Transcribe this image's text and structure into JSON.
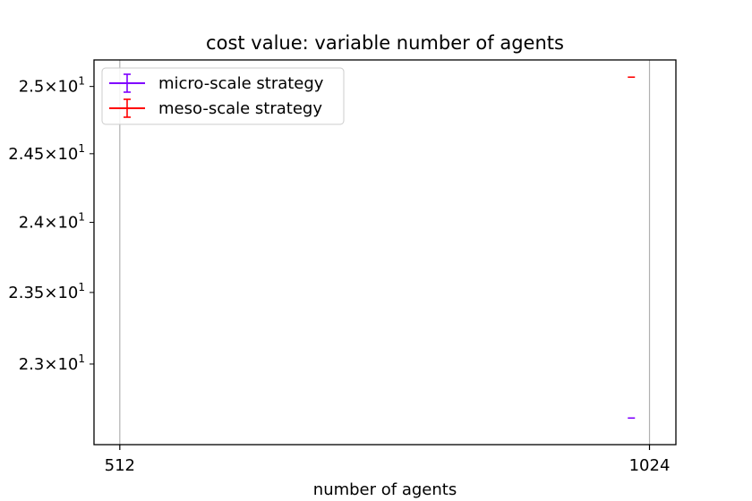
{
  "chart_data": {
    "type": "scatter",
    "title": "cost value: variable number of agents",
    "xlabel": "number of agents",
    "ylabel": "",
    "x_scale": "log2",
    "y_scale": "log",
    "xlim": [
      495,
      1060
    ],
    "ylim": [
      22.45,
      25.2
    ],
    "grid": "x-major",
    "legend_position": "top-left",
    "x_ticks": [
      {
        "value": 512,
        "label": "512"
      },
      {
        "value": 1024,
        "label": "1024"
      }
    ],
    "y_ticks": [
      {
        "value": 23.0,
        "mantissa": "2.3",
        "base": "10",
        "exp": "1"
      },
      {
        "value": 23.5,
        "mantissa": "2.35",
        "base": "10",
        "exp": "1"
      },
      {
        "value": 24.0,
        "mantissa": "2.4",
        "base": "10",
        "exp": "1"
      },
      {
        "value": 24.5,
        "mantissa": "2.45",
        "base": "10",
        "exp": "1"
      },
      {
        "value": 25.0,
        "mantissa": "2.5",
        "base": "10",
        "exp": "1"
      }
    ],
    "series": [
      {
        "name": "micro-scale strategy",
        "color": "#7f00ff",
        "points": [
          {
            "x": 1000,
            "y": 22.63,
            "yerr": 0
          }
        ]
      },
      {
        "name": "meso-scale strategy",
        "color": "#ff0000",
        "points": [
          {
            "x": 1000,
            "y": 25.07,
            "yerr": 0
          }
        ]
      }
    ]
  }
}
